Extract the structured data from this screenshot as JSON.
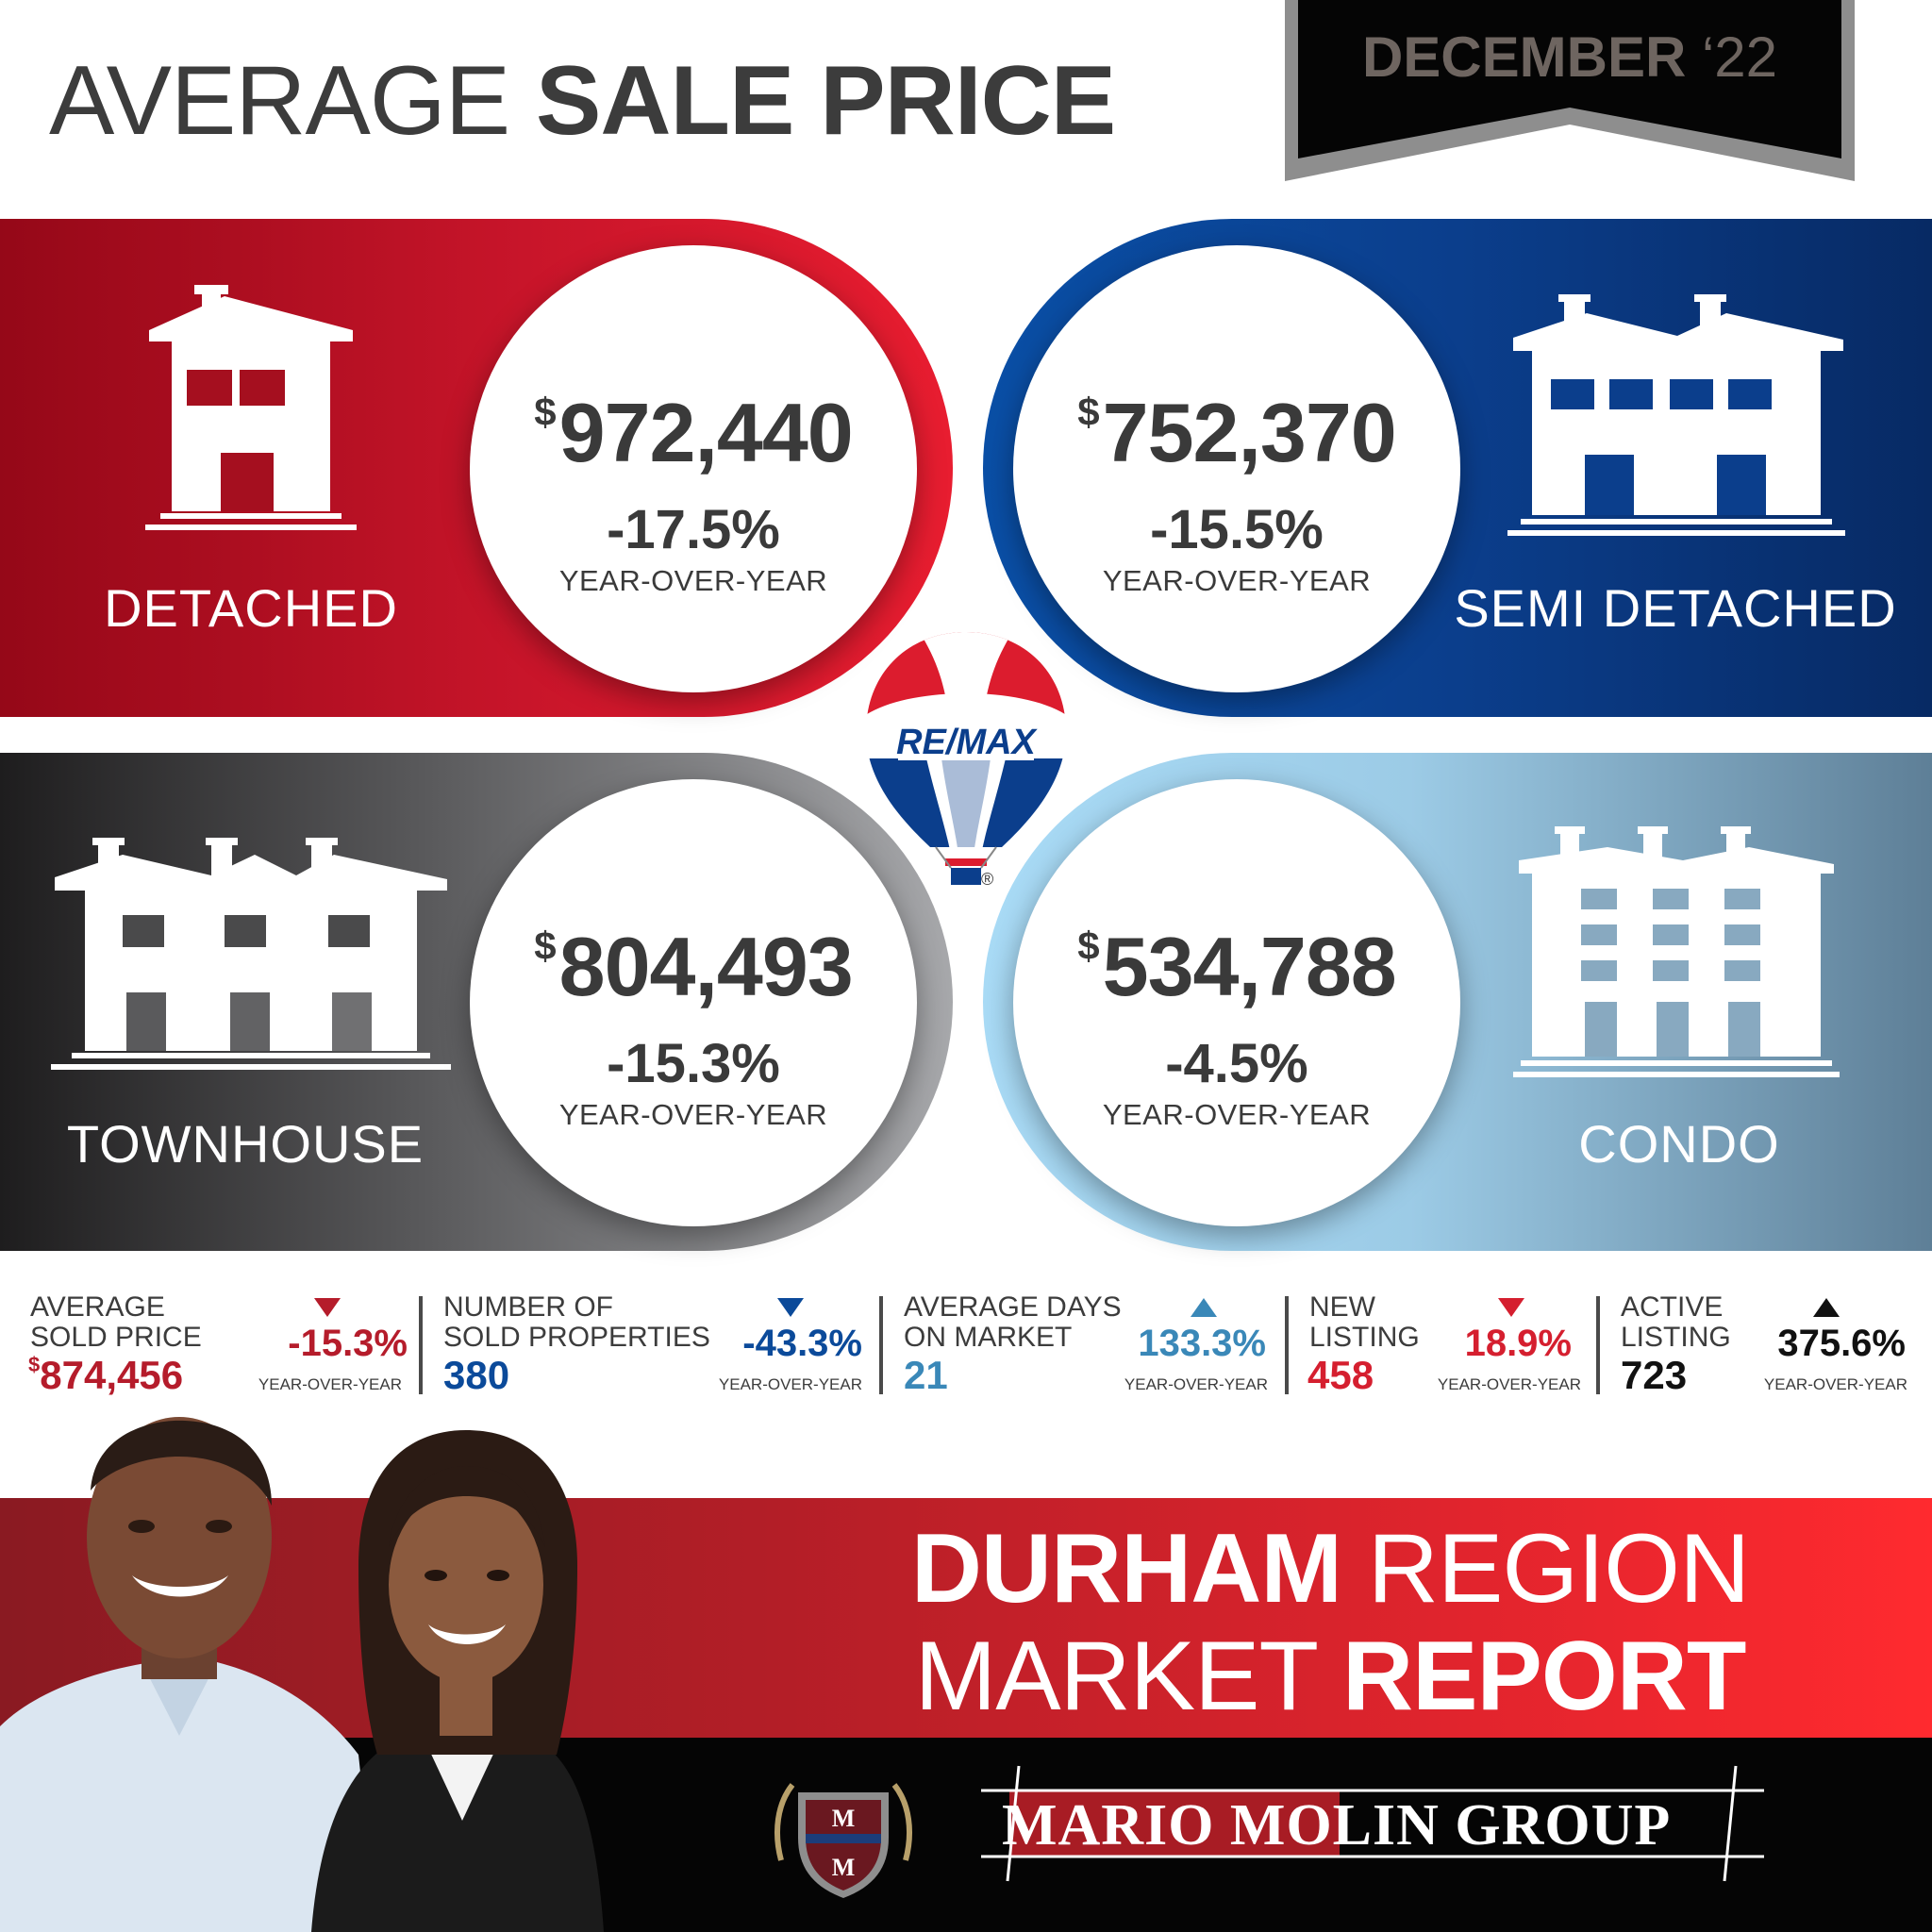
{
  "header": {
    "title_light": "AVERAGE",
    "title_bold": "SALE PRICE",
    "month_bold": "DECEMBER",
    "year": "‘22"
  },
  "categories": [
    {
      "label": "DETACHED",
      "currency": "$",
      "price": "972,440",
      "change": "-17.5%",
      "period": "YEAR-OVER-YEAR"
    },
    {
      "label": "SEMI DETACHED",
      "currency": "$",
      "price": "752,370",
      "change": "-15.5%",
      "period": "YEAR-OVER-YEAR"
    },
    {
      "label": "TOWNHOUSE",
      "currency": "$",
      "price": "804,493",
      "change": "-15.3%",
      "period": "YEAR-OVER-YEAR"
    },
    {
      "label": "CONDO",
      "currency": "$",
      "price": "534,788",
      "change": "-4.5%",
      "period": "YEAR-OVER-YEAR"
    }
  ],
  "logo": {
    "brand": "RE/MAX",
    "registered": "®"
  },
  "stats": [
    {
      "label_line1": "AVERAGE",
      "label_line2": "SOLD PRICE",
      "currency": "$",
      "value": "874,456",
      "change": "-15.3%",
      "period": "YEAR-OVER-YEAR",
      "direction": "down",
      "color": "#b51c2b"
    },
    {
      "label_line1": "NUMBER OF",
      "label_line2": "SOLD PROPERTIES",
      "value": "380",
      "change": "-43.3%",
      "period": "YEAR-OVER-YEAR",
      "direction": "down",
      "color": "#0b4a9a"
    },
    {
      "label_line1": "AVERAGE DAYS",
      "label_line2": "ON MARKET",
      "value": "21",
      "change": "133.3%",
      "period": "YEAR-OVER-YEAR",
      "direction": "up",
      "color": "#3a88b8"
    },
    {
      "label_line1": "NEW",
      "label_line2": "LISTING",
      "value": "458",
      "change": "18.9%",
      "period": "YEAR-OVER-YEAR",
      "direction": "down",
      "color": "#d51f2f"
    },
    {
      "label_line1": "ACTIVE",
      "label_line2": "LISTING",
      "value": "723",
      "change": "375.6%",
      "period": "YEAR-OVER-YEAR",
      "direction": "up",
      "color": "#111111"
    }
  ],
  "banner": {
    "line1_bold": "DURHAM",
    "line1_light": "REGION",
    "line2_light": "MARKET",
    "line2_bold": "REPORT",
    "group_name": "MARIO MOLIN GROUP",
    "crest_letter_top": "M",
    "crest_letter_bottom": "M"
  },
  "colors": {
    "red": "#c8152a",
    "blue": "#0b3e8c",
    "gray": "#5a5a5c",
    "light_blue": "#9ccbe6",
    "banner_red": "#d0212a"
  }
}
